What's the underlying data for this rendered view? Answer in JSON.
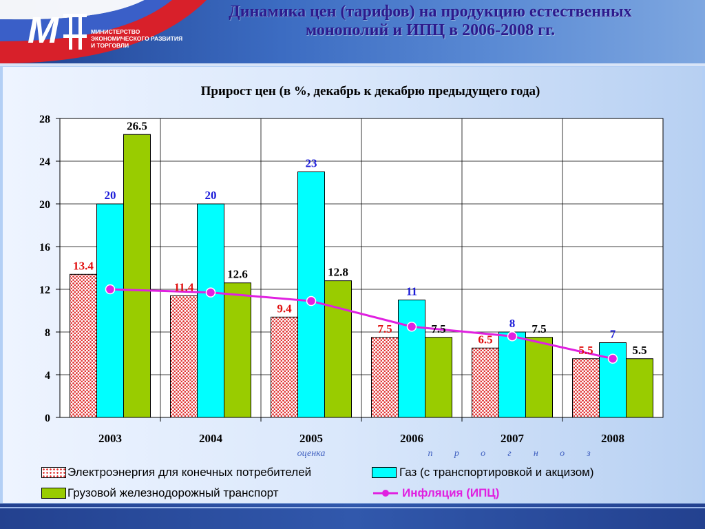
{
  "header": {
    "title_line1": "Динамика цен (тарифов) на продукцию естественных",
    "title_line2": "монополий и ИПЦ  в 2006-2008 гг.",
    "ministry_line1": "МИНИСТЕРСТВО",
    "ministry_line2": "ЭКОНОМИЧЕСКОГО РАЗВИТИЯ",
    "ministry_line3": "И ТОРГОВЛИ"
  },
  "colors": {
    "electricity": "#e03030",
    "gas": "#00ffff",
    "rail": "#99cc00",
    "inflation": "#e020e0",
    "label_electricity": "#e01010",
    "label_gas": "#1a1ad8",
    "label_rail": "#000000",
    "annotation": "#4060c0"
  },
  "chart_data": {
    "type": "bar",
    "title": "Прирост цен (в %, декабрь к декабрю предыдущего года)",
    "categories": [
      "2003",
      "2004",
      "2005",
      "2006",
      "2007",
      "2008"
    ],
    "ylim": [
      0,
      28
    ],
    "yticks": [
      0,
      4,
      8,
      12,
      16,
      20,
      24,
      28
    ],
    "grid": true,
    "legend_position": "bottom",
    "series": [
      {
        "name": "Электроэнергия для конечных потребителей",
        "values": [
          13.4,
          11.4,
          9.4,
          7.5,
          6.5,
          5.5
        ],
        "labels": [
          "13.4",
          "11.4",
          "9.4",
          "7.5",
          "6.5",
          "5.5"
        ]
      },
      {
        "name": "Газ (с транспортировкой и акцизом)",
        "values": [
          20,
          20,
          23,
          11,
          8,
          7
        ],
        "labels": [
          "20",
          "20",
          "23",
          "11",
          "8",
          "7"
        ]
      },
      {
        "name": "Грузовой железнодорожный транспорт",
        "values": [
          26.5,
          12.6,
          12.8,
          7.5,
          7.5,
          5.5
        ],
        "labels": [
          "26.5",
          "12.6",
          "12.8",
          "7.5",
          "7.5",
          "5.5"
        ]
      }
    ],
    "line_series": {
      "name": "Инфляция (ИПЦ)",
      "values": [
        12,
        11.7,
        10.9,
        8.5,
        7.6,
        5.5
      ]
    },
    "annotations": {
      "estimate": "оценка",
      "forecast": [
        "п",
        "р",
        "о",
        "г",
        "н",
        "о",
        "з"
      ]
    }
  }
}
